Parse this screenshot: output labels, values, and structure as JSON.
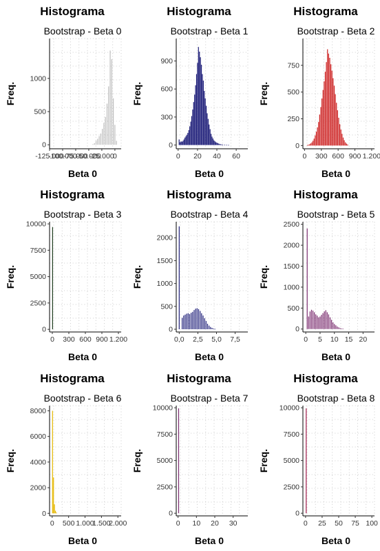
{
  "chart_data": [
    {
      "type": "bar",
      "title": "Histograma",
      "subtitle": "Bootstrap - Beta 0",
      "xlabel": "Beta 0",
      "ylabel": "Freq.",
      "color": "#bdbdbd",
      "xlim": [
        -125000,
        12000
      ],
      "ylim": [
        -60,
        1600
      ],
      "xticks": [
        -125000,
        -100000,
        -75000,
        -50000,
        -25000,
        0
      ],
      "xtick_labels": [
        "-125.000",
        "-100.000",
        "-75.000",
        "-50.000",
        "-25.000",
        "0"
      ],
      "yticks": [
        0,
        500,
        1000
      ],
      "ytick_labels": [
        "0",
        "500",
        "1000"
      ],
      "x": [
        -42000,
        -39000,
        -36000,
        -33000,
        -30000,
        -27000,
        -24000,
        -21000,
        -18000,
        -15000,
        -12000,
        -9000,
        -6000,
        -3000,
        0,
        3000
      ],
      "values": [
        10,
        25,
        60,
        90,
        130,
        170,
        240,
        330,
        420,
        620,
        880,
        1420,
        1290,
        700,
        300,
        60
      ]
    },
    {
      "type": "bar",
      "title": "Histograma",
      "subtitle": "Bootstrap - Beta 1",
      "xlabel": "Beta 0",
      "ylabel": "Freq.",
      "color": "#1f1f7a",
      "xlim": [
        -2,
        72
      ],
      "ylim": [
        -40,
        1140
      ],
      "xticks": [
        0,
        20,
        40,
        60
      ],
      "xtick_labels": [
        "0",
        "20",
        "40",
        "60"
      ],
      "yticks": [
        0,
        300,
        600,
        900
      ],
      "ytick_labels": [
        "0",
        "300",
        "600",
        "900"
      ],
      "x": [
        1,
        2,
        3,
        4,
        5,
        6,
        7,
        8,
        9,
        10,
        11,
        12,
        13,
        14,
        15,
        16,
        17,
        18,
        19,
        20,
        21,
        22,
        23,
        24,
        25,
        26,
        27,
        28,
        29,
        30,
        31,
        32,
        33,
        34,
        35,
        36,
        37,
        38,
        39,
        40,
        41,
        42,
        43,
        44,
        45,
        46,
        48,
        50,
        52
      ],
      "values": [
        60,
        30,
        40,
        35,
        45,
        60,
        80,
        95,
        110,
        130,
        160,
        200,
        250,
        310,
        380,
        460,
        540,
        640,
        760,
        880,
        1050,
        1000,
        940,
        860,
        760,
        690,
        580,
        500,
        420,
        340,
        280,
        220,
        170,
        120,
        90,
        70,
        50,
        40,
        30,
        25,
        20,
        15,
        10,
        8,
        6,
        5,
        3,
        2,
        1
      ]
    },
    {
      "type": "bar",
      "title": "Histograma",
      "subtitle": "Bootstrap - Beta 2",
      "xlabel": "Beta 0",
      "ylabel": "Freq.",
      "color": "#cc1f1f",
      "xlim": [
        -30,
        1250
      ],
      "ylim": [
        -30,
        1000
      ],
      "xticks": [
        0,
        300,
        600,
        900,
        1200
      ],
      "xtick_labels": [
        "0",
        "300",
        "600",
        "900",
        "1.200"
      ],
      "yticks": [
        0,
        250,
        500,
        750
      ],
      "ytick_labels": [
        "0",
        "250",
        "500",
        "750"
      ],
      "x": [
        50,
        70,
        90,
        110,
        130,
        150,
        170,
        190,
        210,
        230,
        250,
        270,
        290,
        310,
        330,
        350,
        370,
        390,
        410,
        430,
        450,
        470,
        490,
        510,
        530,
        550,
        570,
        590,
        610,
        630,
        650,
        670,
        690,
        710,
        730,
        750,
        770
      ],
      "values": [
        5,
        8,
        12,
        20,
        30,
        45,
        65,
        95,
        130,
        170,
        220,
        290,
        360,
        440,
        520,
        600,
        690,
        780,
        900,
        860,
        820,
        760,
        700,
        630,
        560,
        480,
        400,
        330,
        260,
        200,
        150,
        110,
        75,
        50,
        30,
        18,
        10
      ]
    },
    {
      "type": "bar",
      "title": "Histograma",
      "subtitle": "Bootstrap - Beta 3",
      "xlabel": "Beta 0",
      "ylabel": "Freq.",
      "color": "#1e3d1e",
      "xlim": [
        -50,
        1250
      ],
      "ylim": [
        -250,
        10200
      ],
      "xticks": [
        0,
        300,
        600,
        900,
        1200
      ],
      "xtick_labels": [
        "0",
        "300",
        "600",
        "900",
        "1.200"
      ],
      "yticks": [
        0,
        2500,
        5000,
        7500,
        10000
      ],
      "ytick_labels": [
        "0",
        "2500",
        "5000",
        "7500",
        "10000"
      ],
      "x": [
        5
      ],
      "values": [
        9700
      ]
    },
    {
      "type": "bar",
      "title": "Histograma",
      "subtitle": "Bootstrap - Beta 4",
      "xlabel": "Beta 0",
      "ylabel": "Freq.",
      "color": "#1f1f7a",
      "xlim": [
        -0.4,
        9.2
      ],
      "ylim": [
        -60,
        2350
      ],
      "xticks": [
        0,
        2.5,
        5,
        7.5
      ],
      "xtick_labels": [
        "0,0",
        "2,5",
        "5,0",
        "7,5"
      ],
      "yticks": [
        0,
        500,
        1000,
        1500,
        2000
      ],
      "ytick_labels": [
        "0",
        "500",
        "1000",
        "1500",
        "2000"
      ],
      "x": [
        0.0,
        0.4,
        0.6,
        0.8,
        1.0,
        1.2,
        1.4,
        1.6,
        1.8,
        2.0,
        2.2,
        2.4,
        2.6,
        2.8,
        3.0,
        3.2,
        3.4,
        3.6,
        3.8,
        4.0,
        4.2,
        4.4,
        4.6,
        4.8
      ],
      "values": [
        2250,
        250,
        300,
        320,
        340,
        350,
        330,
        360,
        380,
        420,
        450,
        460,
        440,
        400,
        350,
        300,
        240,
        180,
        120,
        80,
        50,
        30,
        15,
        8
      ]
    },
    {
      "type": "bar",
      "title": "Histograma",
      "subtitle": "Bootstrap - Beta 5",
      "xlabel": "Beta 0",
      "ylabel": "Freq.",
      "color": "#7a2a6e",
      "xlim": [
        -1,
        24
      ],
      "ylim": [
        -70,
        2560
      ],
      "xticks": [
        0,
        5,
        10,
        15,
        20
      ],
      "xtick_labels": [
        "0",
        "5",
        "10",
        "15",
        "20"
      ],
      "yticks": [
        0,
        500,
        1000,
        1500,
        2000,
        2500
      ],
      "ytick_labels": [
        "0",
        "500",
        "1000",
        "1500",
        "2000",
        "2500"
      ],
      "x": [
        0.5,
        1,
        1.5,
        2,
        2.5,
        3,
        3.5,
        4,
        4.5,
        5,
        5.5,
        6,
        6.5,
        7,
        7.5,
        8,
        8.5,
        9,
        9.5,
        10,
        10.5,
        11,
        11.5,
        12,
        12.5,
        13
      ],
      "values": [
        2400,
        300,
        420,
        460,
        440,
        400,
        350,
        320,
        280,
        300,
        340,
        380,
        420,
        450,
        400,
        350,
        280,
        220,
        160,
        120,
        90,
        60,
        40,
        25,
        15,
        8
      ]
    },
    {
      "type": "bar",
      "title": "Histograma",
      "subtitle": "Bootstrap - Beta 6",
      "xlabel": "Beta 0",
      "ylabel": "Freq.",
      "color": "#e6b800",
      "xlim": [
        -80,
        2100
      ],
      "ylim": [
        -200,
        8400
      ],
      "xticks": [
        0,
        500,
        1000,
        1500,
        2000
      ],
      "xtick_labels": [
        "0",
        "500",
        "1.000",
        "1.500",
        "2.000"
      ],
      "yticks": [
        0,
        2000,
        4000,
        6000,
        8000
      ],
      "ytick_labels": [
        "0",
        "2000",
        "4000",
        "6000",
        "8000"
      ],
      "x": [
        10,
        40,
        70,
        100,
        130
      ],
      "values": [
        8000,
        2800,
        700,
        200,
        60
      ]
    },
    {
      "type": "bar",
      "title": "Histograma",
      "subtitle": "Bootstrap - Beta 7",
      "xlabel": "Beta 0",
      "ylabel": "Freq.",
      "color": "#7a2a6e",
      "xlim": [
        -1,
        38
      ],
      "ylim": [
        -250,
        10200
      ],
      "xticks": [
        0,
        10,
        20,
        30
      ],
      "xtick_labels": [
        "0",
        "10",
        "20",
        "30"
      ],
      "yticks": [
        0,
        2500,
        5000,
        7500,
        10000
      ],
      "ytick_labels": [
        "0",
        "2500",
        "5000",
        "7500",
        "10000"
      ],
      "x": [
        0.3
      ],
      "values": [
        9950
      ]
    },
    {
      "type": "bar",
      "title": "Histograma",
      "subtitle": "Bootstrap - Beta 8",
      "xlabel": "Beta 0",
      "ylabel": "Freq.",
      "color": "#a01a4a",
      "xlim": [
        -4,
        104
      ],
      "ylim": [
        -250,
        10200
      ],
      "xticks": [
        0,
        25,
        50,
        75,
        100
      ],
      "xtick_labels": [
        "0",
        "25",
        "50",
        "75",
        "100"
      ],
      "yticks": [
        0,
        2500,
        5000,
        7500,
        10000
      ],
      "ytick_labels": [
        "0",
        "2500",
        "5000",
        "7500",
        "10000"
      ],
      "x": [
        1
      ],
      "values": [
        9950
      ]
    }
  ]
}
